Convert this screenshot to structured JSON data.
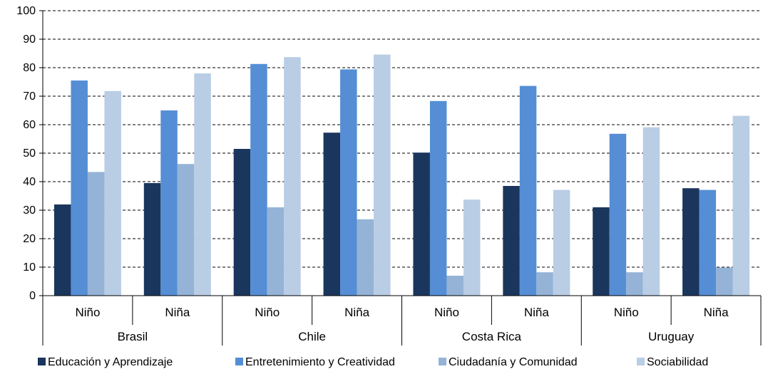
{
  "chart_data": {
    "type": "bar",
    "title": "",
    "xlabel": "",
    "ylabel": "",
    "ylim": [
      0,
      100
    ],
    "yticks": [
      0,
      10,
      20,
      30,
      40,
      50,
      60,
      70,
      80,
      90,
      100
    ],
    "grid": "horizontal dashed",
    "legend_position": "bottom",
    "categories": [
      "Niño",
      "Niña",
      "Niño",
      "Niña",
      "Niño",
      "Niña",
      "Niño",
      "Niña"
    ],
    "groups": [
      {
        "label": "Brasil",
        "span": 2
      },
      {
        "label": "Chile",
        "span": 2
      },
      {
        "label": "Costa Rica",
        "span": 2
      },
      {
        "label": "Uruguay",
        "span": 2
      }
    ],
    "series": [
      {
        "name": "Educación y Aprendizaje",
        "color": "#1b365d",
        "values": [
          32,
          39.5,
          51.5,
          57.2,
          50.2,
          38.5,
          31,
          37.7
        ]
      },
      {
        "name": "Entretenimiento y Creatividad",
        "color": "#558ed5",
        "values": [
          75.5,
          65,
          81.3,
          79.4,
          68.3,
          73.6,
          56.8,
          37.1
        ]
      },
      {
        "name": "Ciudadanía y Comunidad",
        "color": "#95b3d7",
        "values": [
          43.4,
          46.2,
          31,
          26.8,
          7,
          8.2,
          8.2,
          9.9
        ]
      },
      {
        "name": "Sociabilidad",
        "color": "#b9cde5",
        "values": [
          71.8,
          78,
          83.7,
          84.6,
          33.7,
          37.1,
          59.1,
          63.1
        ]
      }
    ]
  }
}
